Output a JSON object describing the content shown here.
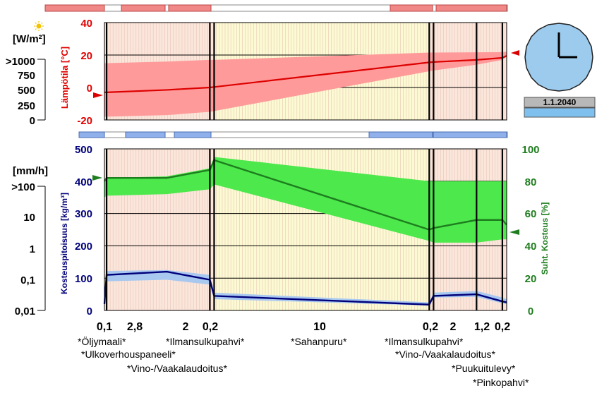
{
  "left_panel": {
    "radiation_unit": "[W/m²]",
    "radiation_ticks": [
      ">1000",
      "750",
      "500",
      "250",
      "0"
    ],
    "rain_unit": "[mm/h]",
    "rain_ticks": [
      ">100",
      "10",
      "1",
      "0,1",
      "0,01"
    ]
  },
  "clock": {
    "date": "1.1.2040"
  },
  "layers": {
    "thickness_labels": [
      "0,1",
      "2,8",
      "2",
      "0,2",
      "10",
      "0,2",
      "2",
      "1,2",
      "0,2"
    ],
    "material_labels": [
      "*Öljymaali*",
      "*Ulkoverhouspaneeli*",
      "*Vino-/Vaakalaudoitus*",
      "*Ilmansulkupahvi*",
      "*Sahanpuru*",
      "*Ilmansulkupahvi*",
      "*Vino-/Vaakalaudoitus*",
      "*Puukuitulevy*",
      "*Pinkopahvi*"
    ]
  },
  "colors": {
    "temperature": "#dd0000",
    "temperature_band": "#ff9a9a",
    "humidity": "#1e7d1e",
    "humidity_band": "#4ce84c",
    "moisture": "#00007a",
    "moisture_band": "#a8c8f0",
    "layer_wood": "#fbe6dc",
    "layer_insulation": "#fbfad2"
  },
  "chart_data": [
    {
      "type": "line",
      "ylabel": "Lämpötila [°C]",
      "ylim": [
        -20,
        40
      ],
      "yticks": [
        "40",
        "20",
        "0",
        "-20"
      ],
      "x_unit": "position through the wall from outside to inside (mm)",
      "x": [
        0,
        0.1,
        2.9,
        4.9,
        5.1,
        15.1,
        15.3,
        17.3,
        18.5,
        18.7
      ],
      "series": [
        {
          "values": [
            -3,
            -3,
            -1.5,
            0,
            0.3,
            15.5,
            15.7,
            17,
            18.3,
            19.5
          ]
        },
        {
          "values": [
            15,
            15,
            16,
            17,
            17,
            21.5,
            21.5,
            21.7,
            21.8,
            22
          ]
        },
        {
          "values": [
            -18,
            -18,
            -17,
            -15,
            -14.5,
            10,
            10.5,
            14,
            17,
            19
          ]
        }
      ]
    },
    {
      "type": "line",
      "ylabel_left": "Kosteuspitoisuus [kg/m³]",
      "ylabel_right": "Suht. Kosteus [%]",
      "ylim_left": [
        0,
        500
      ],
      "ylim_right": [
        0,
        100
      ],
      "yticks_left": [
        "500",
        "400",
        "300",
        "200",
        "100",
        "0"
      ],
      "yticks_right": [
        "100",
        "80",
        "60",
        "40",
        "20",
        "0"
      ],
      "x": [
        0,
        0.1,
        2.9,
        4.9,
        5.1,
        15.1,
        15.3,
        17.3,
        18.5,
        18.7
      ],
      "series": [
        {
          "values": [
            80,
            82,
            82,
            87,
            93,
            50,
            51,
            56,
            56,
            53
          ]
        },
        {
          "values": [
            80,
            82,
            83,
            88,
            95,
            80,
            80,
            80,
            80,
            80
          ]
        },
        {
          "values": [
            70,
            71,
            72,
            75,
            78,
            43,
            42,
            42,
            44,
            44
          ]
        },
        {
          "values": [
            20,
            110,
            120,
            95,
            45,
            18,
            45,
            50,
            28,
            25
          ]
        },
        {
          "values": [
            20,
            122,
            125,
            110,
            55,
            25,
            55,
            60,
            40,
            35
          ]
        },
        {
          "values": [
            20,
            90,
            95,
            80,
            35,
            15,
            40,
            42,
            22,
            20
          ]
        }
      ]
    }
  ]
}
